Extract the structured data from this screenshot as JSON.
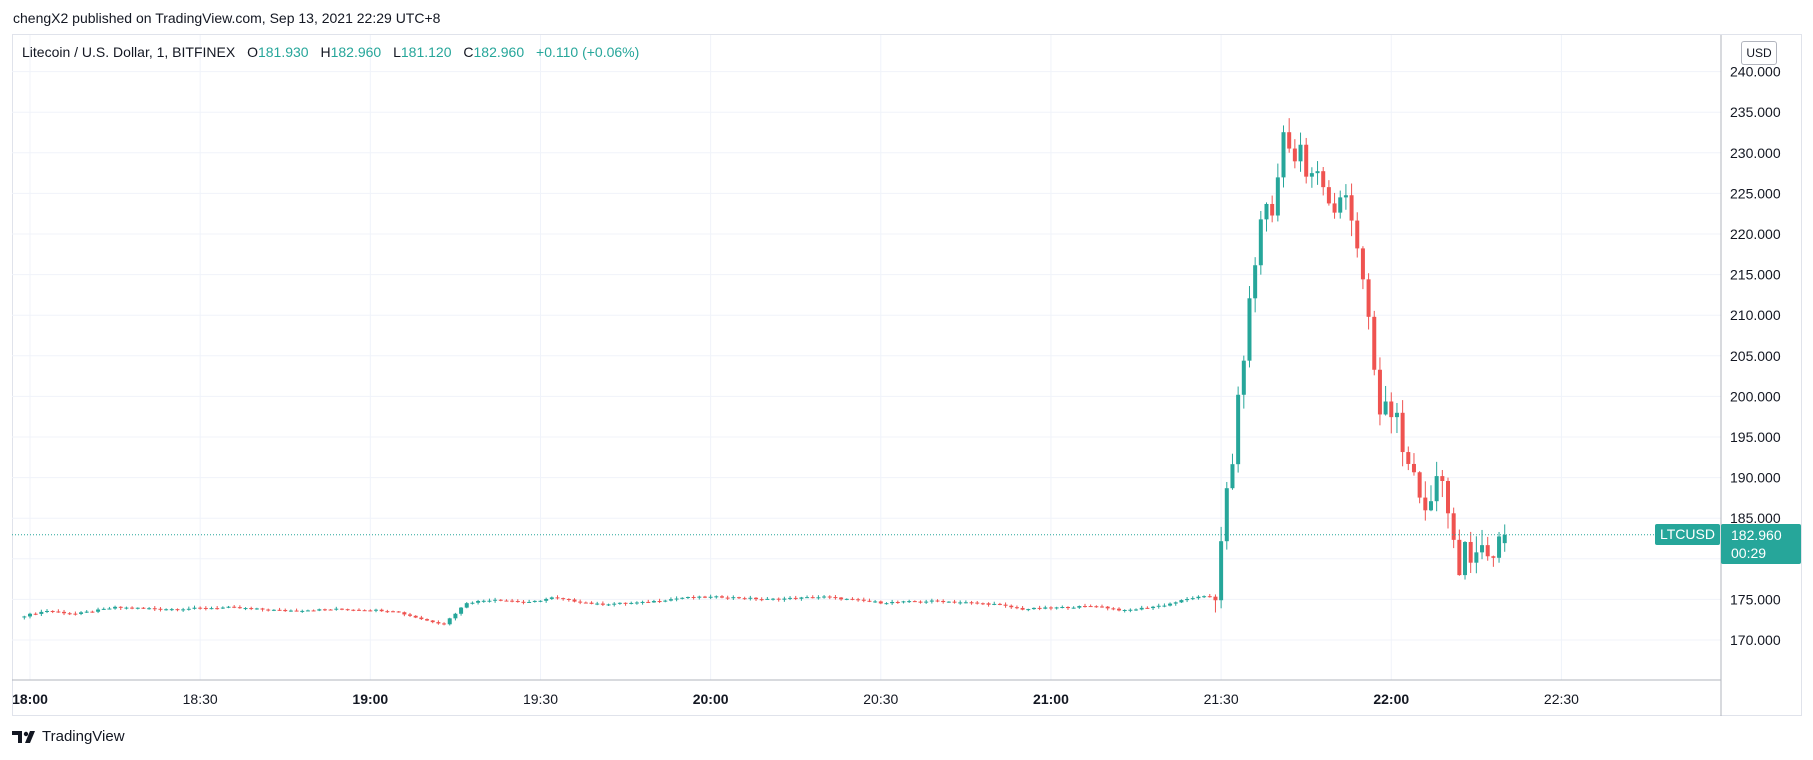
{
  "header": {
    "published_by": "chengX2 published on TradingView.com, Sep 13, 2021 22:29 UTC+8"
  },
  "legend": {
    "symbol": "Litecoin / U.S. Dollar, 1, BITFINEX",
    "o_label": "O",
    "o_value": "181.930",
    "h_label": "H",
    "h_value": "182.960",
    "l_label": "L",
    "l_value": "181.120",
    "c_label": "C",
    "c_value": "182.960",
    "change": "+0.110 (+0.06%)"
  },
  "currency": "USD",
  "last_price": {
    "symbol": "LTCUSD",
    "price": "182.960",
    "countdown": "00:29"
  },
  "footer": {
    "brand": "TradingView",
    "logo_icon": "tradingview-logo-icon"
  },
  "colors": {
    "up": "#26a69a",
    "down": "#ef5350",
    "grid": "#f0f3fa",
    "axis_text": "#131722"
  },
  "chart_data": {
    "type": "candlestick",
    "title": "Litecoin / U.S. Dollar, 1, BITFINEX",
    "xlabel": "",
    "ylabel": "",
    "interval_minutes": 1,
    "ylim": [
      165,
      240
    ],
    "grid": true,
    "y_ticks": [
      "170.000",
      "175.000",
      "180.000",
      "185.000",
      "190.000",
      "195.000",
      "200.000",
      "205.000",
      "210.000",
      "215.000",
      "220.000",
      "225.000",
      "230.000",
      "235.000",
      "240.000"
    ],
    "x_ticks": [
      {
        "label": "18:00",
        "time": "18:00",
        "bold": true
      },
      {
        "label": "18:30",
        "time": "18:30",
        "bold": false
      },
      {
        "label": "19:00",
        "time": "19:00",
        "bold": true
      },
      {
        "label": "19:30",
        "time": "19:30",
        "bold": false
      },
      {
        "label": "20:00",
        "time": "20:00",
        "bold": true
      },
      {
        "label": "20:30",
        "time": "20:30",
        "bold": false
      },
      {
        "label": "21:00",
        "time": "21:00",
        "bold": true
      },
      {
        "label": "21:30",
        "time": "21:30",
        "bold": false
      },
      {
        "label": "22:00",
        "time": "22:00",
        "bold": true
      },
      {
        "label": "22:30",
        "time": "22:30",
        "bold": false
      }
    ],
    "last_close": 182.96,
    "x_start": "17:59",
    "close_path": [
      {
        "time": "17:59",
        "close": 173.0
      },
      {
        "time": "18:03",
        "close": 173.6
      },
      {
        "time": "18:08",
        "close": 173.2
      },
      {
        "time": "18:15",
        "close": 174.0
      },
      {
        "time": "18:25",
        "close": 173.8
      },
      {
        "time": "18:35",
        "close": 174.0
      },
      {
        "time": "18:45",
        "close": 173.6
      },
      {
        "time": "18:55",
        "close": 173.8
      },
      {
        "time": "19:04",
        "close": 173.6
      },
      {
        "time": "19:10",
        "close": 172.4
      },
      {
        "time": "19:13",
        "close": 172.0
      },
      {
        "time": "19:17",
        "close": 174.6
      },
      {
        "time": "19:22",
        "close": 175.0
      },
      {
        "time": "19:28",
        "close": 174.6
      },
      {
        "time": "19:32",
        "close": 175.2
      },
      {
        "time": "19:40",
        "close": 174.4
      },
      {
        "time": "19:48",
        "close": 174.6
      },
      {
        "time": "19:55",
        "close": 175.2
      },
      {
        "time": "20:02",
        "close": 175.3
      },
      {
        "time": "20:10",
        "close": 175.0
      },
      {
        "time": "20:20",
        "close": 175.3
      },
      {
        "time": "20:30",
        "close": 174.6
      },
      {
        "time": "20:40",
        "close": 174.8
      },
      {
        "time": "20:50",
        "close": 174.4
      },
      {
        "time": "20:55",
        "close": 173.8
      },
      {
        "time": "21:02",
        "close": 174.0
      },
      {
        "time": "21:08",
        "close": 174.2
      },
      {
        "time": "21:13",
        "close": 173.6
      },
      {
        "time": "21:20",
        "close": 174.3
      },
      {
        "time": "21:25",
        "close": 175.2
      },
      {
        "time": "21:29",
        "close": 175.4
      },
      {
        "time": "21:30",
        "close": 182.8
      },
      {
        "time": "21:31",
        "close": 188.0
      },
      {
        "time": "21:32",
        "close": 191.0
      },
      {
        "time": "21:33",
        "close": 200.0
      },
      {
        "time": "21:34",
        "close": 205.0
      },
      {
        "time": "21:35",
        "close": 211.0
      },
      {
        "time": "21:36",
        "close": 217.0
      },
      {
        "time": "21:37",
        "close": 221.0
      },
      {
        "time": "21:38",
        "close": 224.0
      },
      {
        "time": "21:39",
        "close": 222.0
      },
      {
        "time": "21:40",
        "close": 227.0
      },
      {
        "time": "21:41",
        "close": 233.0
      },
      {
        "time": "21:42",
        "close": 230.0
      },
      {
        "time": "21:43",
        "close": 229.0
      },
      {
        "time": "21:44",
        "close": 231.0
      },
      {
        "time": "21:45",
        "close": 228.0
      },
      {
        "time": "21:46",
        "close": 227.5
      },
      {
        "time": "21:47",
        "close": 227.0
      },
      {
        "time": "21:48",
        "close": 226.0
      },
      {
        "time": "21:49",
        "close": 223.0
      },
      {
        "time": "21:50",
        "close": 222.5
      },
      {
        "time": "21:51",
        "close": 224.0
      },
      {
        "time": "21:52",
        "close": 225.0
      },
      {
        "time": "21:53",
        "close": 222.0
      },
      {
        "time": "21:54",
        "close": 218.0
      },
      {
        "time": "21:55",
        "close": 215.0
      },
      {
        "time": "21:56",
        "close": 210.0
      },
      {
        "time": "21:57",
        "close": 203.0
      },
      {
        "time": "21:58",
        "close": 198.0
      },
      {
        "time": "21:59",
        "close": 199.0
      },
      {
        "time": "22:00",
        "close": 197.0
      },
      {
        "time": "22:01",
        "close": 198.0
      },
      {
        "time": "22:02",
        "close": 194.0
      },
      {
        "time": "22:03",
        "close": 192.0
      },
      {
        "time": "22:04",
        "close": 191.0
      },
      {
        "time": "22:05",
        "close": 187.0
      },
      {
        "time": "22:06",
        "close": 185.0
      },
      {
        "time": "22:07",
        "close": 187.0
      },
      {
        "time": "22:08",
        "close": 190.0
      },
      {
        "time": "22:09",
        "close": 189.0
      },
      {
        "time": "22:10",
        "close": 186.0
      },
      {
        "time": "22:11",
        "close": 182.0
      },
      {
        "time": "22:12",
        "close": 179.0
      },
      {
        "time": "22:13",
        "close": 181.0
      },
      {
        "time": "22:14",
        "close": 178.5
      },
      {
        "time": "22:15",
        "close": 180.0
      },
      {
        "time": "22:16",
        "close": 182.0
      },
      {
        "time": "22:17",
        "close": 181.0
      },
      {
        "time": "22:18",
        "close": 180.5
      },
      {
        "time": "22:19",
        "close": 182.5
      },
      {
        "time": "22:20",
        "close": 182.96
      }
    ]
  }
}
